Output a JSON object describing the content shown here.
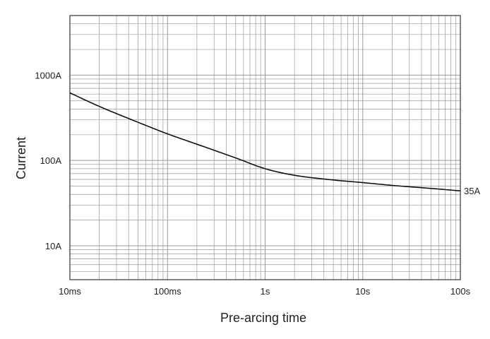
{
  "chart_data": {
    "type": "line",
    "xlabel": "Pre-arcing time",
    "ylabel": "Current",
    "x_scale": "log",
    "y_scale": "log",
    "xlim": [
      0.01,
      100
    ],
    "ylim": [
      4,
      5000
    ],
    "grid": true,
    "x_ticks": [
      {
        "value": 0.01,
        "label": "10ms"
      },
      {
        "value": 0.1,
        "label": "100ms"
      },
      {
        "value": 1,
        "label": "1s"
      },
      {
        "value": 10,
        "label": "10s"
      },
      {
        "value": 100,
        "label": "100s"
      }
    ],
    "y_ticks": [
      {
        "value": 10,
        "label": "10A"
      },
      {
        "value": 100,
        "label": "100A"
      },
      {
        "value": 1000,
        "label": "1000A"
      }
    ],
    "series": [
      {
        "name": "35A",
        "x": [
          0.01,
          0.02,
          0.05,
          0.1,
          0.2,
          0.5,
          1,
          2,
          5,
          10,
          20,
          50,
          100
        ],
        "y": [
          620,
          430,
          280,
          205,
          155,
          107,
          80,
          67,
          59,
          55,
          51,
          47,
          44
        ]
      }
    ],
    "colors": {
      "line": "#111111",
      "grid": "#999999",
      "axis": "#333333"
    }
  }
}
